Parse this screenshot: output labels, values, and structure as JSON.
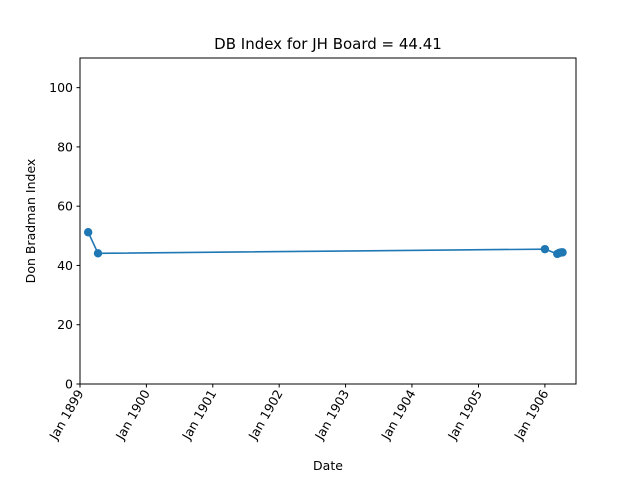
{
  "chart_data": {
    "type": "line",
    "title": "DB Index for JH Board = 44.41",
    "xlabel": "Date",
    "ylabel": "Don Bradman Index",
    "ylim": [
      0,
      110
    ],
    "yticks": [
      0,
      20,
      40,
      60,
      80,
      100
    ],
    "xlim": [
      "1899-01-01",
      "1906-06-21"
    ],
    "xticks": [
      {
        "date": "1899-01-01",
        "label": "Jan 1899"
      },
      {
        "date": "1900-01-01",
        "label": "Jan 1900"
      },
      {
        "date": "1901-01-01",
        "label": "Jan 1901"
      },
      {
        "date": "1902-01-01",
        "label": "Jan 1902"
      },
      {
        "date": "1903-01-01",
        "label": "Jan 1903"
      },
      {
        "date": "1904-01-01",
        "label": "Jan 1904"
      },
      {
        "date": "1905-01-01",
        "label": "Jan 1905"
      },
      {
        "date": "1906-01-01",
        "label": "Jan 1906"
      }
    ],
    "grid": false,
    "series": [
      {
        "color": "#1f77b4",
        "points": [
          {
            "x": "1899-02-15",
            "y": 51.2
          },
          {
            "x": "1899-04-10",
            "y": 44.1
          },
          {
            "x": "1906-01-01",
            "y": 45.5
          },
          {
            "x": "1906-03-10",
            "y": 43.9
          },
          {
            "x": "1906-03-20",
            "y": 44.2
          },
          {
            "x": "1906-03-30",
            "y": 44.4
          },
          {
            "x": "1906-04-08",
            "y": 44.41
          }
        ]
      }
    ]
  }
}
